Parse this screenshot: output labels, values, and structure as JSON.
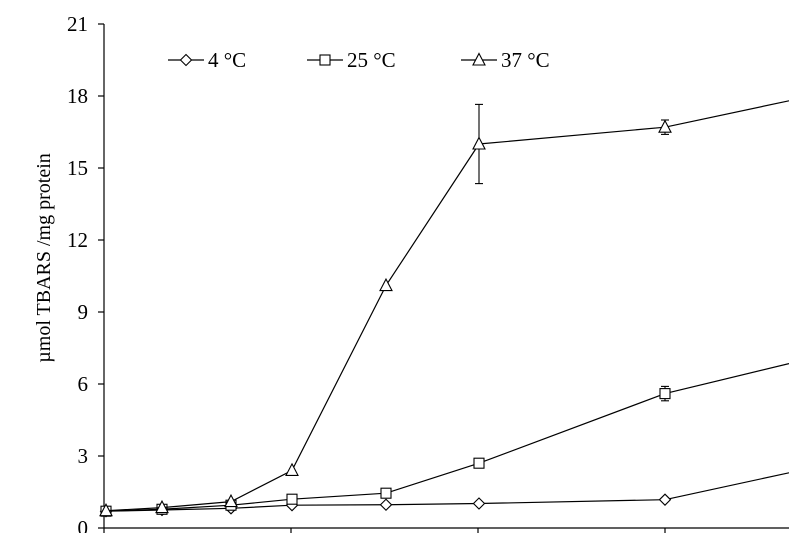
{
  "chart_data": {
    "type": "line",
    "ylabel": "µmol TBARS /mg protein",
    "xlabel": "",
    "ylim": [
      0,
      21
    ],
    "yticks": [
      0,
      3,
      6,
      9,
      12,
      15,
      18,
      21
    ],
    "ytick_labels": [
      "0",
      "3",
      "6",
      "9",
      "12",
      "15",
      "18",
      "21"
    ],
    "x_unlabeled": true,
    "legend_position": "top-left",
    "series": [
      {
        "name": "4 °C",
        "marker": "diamond",
        "points": [
          {
            "x": 0,
            "y": 0.7
          },
          {
            "x": 1,
            "y": 0.75
          },
          {
            "x": 2,
            "y": 0.82
          },
          {
            "x": 3,
            "y": 0.95
          },
          {
            "x": 4,
            "y": 0.97
          },
          {
            "x": 5,
            "y": 1.02
          },
          {
            "x": 6,
            "y": 1.18
          },
          {
            "x": 7,
            "y": 2.3
          }
        ]
      },
      {
        "name": "25 °C",
        "marker": "square",
        "points": [
          {
            "x": 0,
            "y": 0.7
          },
          {
            "x": 1,
            "y": 0.78
          },
          {
            "x": 2,
            "y": 0.95
          },
          {
            "x": 3,
            "y": 1.2,
            "err": 0.1
          },
          {
            "x": 4,
            "y": 1.45
          },
          {
            "x": 5,
            "y": 2.7,
            "err": 0.15
          },
          {
            "x": 6,
            "y": 5.6,
            "err": 0.3
          },
          {
            "x": 7,
            "y": 6.85
          }
        ]
      },
      {
        "name": "37 °C",
        "marker": "triangle",
        "points": [
          {
            "x": 0,
            "y": 0.72
          },
          {
            "x": 1,
            "y": 0.85
          },
          {
            "x": 2,
            "y": 1.1
          },
          {
            "x": 3,
            "y": 2.4
          },
          {
            "x": 4,
            "y": 10.1
          },
          {
            "x": 5,
            "y": 16.0,
            "err": 1.65
          },
          {
            "x": 6,
            "y": 16.7,
            "err": 0.3
          },
          {
            "x": 7,
            "y": 17.8
          }
        ]
      }
    ]
  }
}
